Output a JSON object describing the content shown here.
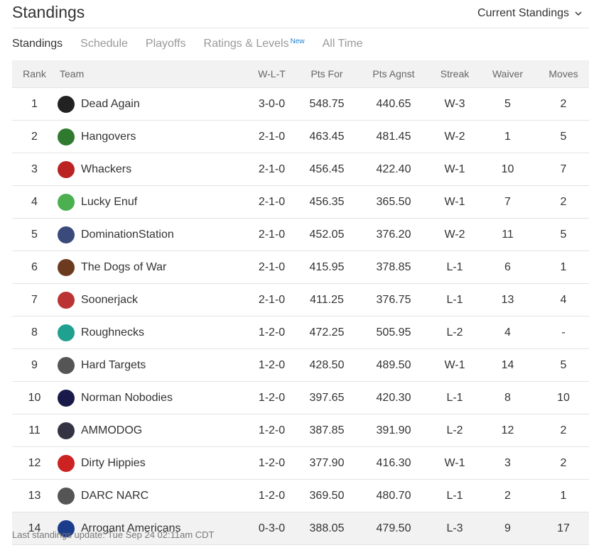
{
  "header": {
    "title": "Standings",
    "dropdown": "Current Standings"
  },
  "tabs": [
    "Standings",
    "Schedule",
    "Playoffs",
    "Ratings & Levels",
    "All Time"
  ],
  "new_badge": "New",
  "table": {
    "columns": [
      "Rank",
      "Team",
      "W-L-T",
      "Pts For",
      "Pts Agnst",
      "Streak",
      "Waiver",
      "Moves"
    ],
    "rows": [
      [
        "1",
        "Dead Again",
        "3-0-0",
        "548.75",
        "440.65",
        "W-3",
        "5",
        "2"
      ],
      [
        "2",
        "Hangovers",
        "2-1-0",
        "463.45",
        "481.45",
        "W-2",
        "1",
        "5"
      ],
      [
        "3",
        "Whackers",
        "2-1-0",
        "456.45",
        "422.40",
        "W-1",
        "10",
        "7"
      ],
      [
        "4",
        "Lucky Enuf",
        "2-1-0",
        "456.35",
        "365.50",
        "W-1",
        "7",
        "2"
      ],
      [
        "5",
        "DominationStation",
        "2-1-0",
        "452.05",
        "376.20",
        "W-2",
        "11",
        "5"
      ],
      [
        "6",
        "The Dogs of War",
        "2-1-0",
        "415.95",
        "378.85",
        "L-1",
        "6",
        "1"
      ],
      [
        "7",
        "Soonerjack",
        "2-1-0",
        "411.25",
        "376.75",
        "L-1",
        "13",
        "4"
      ],
      [
        "8",
        "Roughnecks",
        "1-2-0",
        "472.25",
        "505.95",
        "L-2",
        "4",
        "-"
      ],
      [
        "9",
        "Hard Targets",
        "1-2-0",
        "428.50",
        "489.50",
        "W-1",
        "14",
        "5"
      ],
      [
        "10",
        "Norman Nobodies",
        "1-2-0",
        "397.65",
        "420.30",
        "L-1",
        "8",
        "10"
      ],
      [
        "11",
        "AMMODOG",
        "1-2-0",
        "387.85",
        "391.90",
        "L-2",
        "12",
        "2"
      ],
      [
        "12",
        "Dirty Hippies",
        "1-2-0",
        "377.90",
        "416.30",
        "W-1",
        "3",
        "2"
      ],
      [
        "13",
        "DARC NARC",
        "1-2-0",
        "369.50",
        "480.70",
        "L-1",
        "2",
        "1"
      ],
      [
        "14",
        "Arrogant Americans",
        "0-3-0",
        "388.05",
        "479.50",
        "L-3",
        "9",
        "17"
      ]
    ]
  },
  "footer": "Last standings update: Tue Sep 24 02:11am CDT"
}
